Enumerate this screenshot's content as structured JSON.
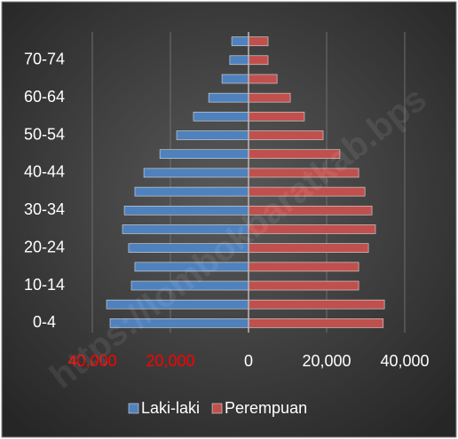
{
  "chart_data": {
    "type": "pyramid",
    "categories": [
      "0-4",
      null,
      "10-14",
      null,
      "20-24",
      null,
      "30-34",
      null,
      "40-44",
      null,
      "50-54",
      null,
      "60-64",
      null,
      "70-74",
      null
    ],
    "series": [
      {
        "name": "Laki-laki",
        "color": "#4f81bd",
        "values": [
          -35450,
          -36360,
          -30000,
          -29100,
          -30700,
          -32270,
          -31800,
          -29100,
          -26800,
          -22700,
          -18400,
          -14100,
          -10200,
          -6800,
          -4800,
          -4300
        ]
      },
      {
        "name": "Perempuan",
        "color": "#c0504d",
        "values": [
          34500,
          34800,
          28200,
          28200,
          30700,
          32500,
          31600,
          29800,
          28200,
          23400,
          19100,
          14300,
          10700,
          7300,
          5000,
          5000
        ]
      }
    ],
    "xlim": [
      -50000,
      50000
    ],
    "xticks": [
      {
        "value": -40000,
        "label": "40,000"
      },
      {
        "value": -20000,
        "label": "20,000"
      },
      0,
      {
        "value": 20000,
        "label": "20,000"
      },
      {
        "value": 40000,
        "label": "40,000"
      }
    ],
    "xtick_label_colors": [
      "#ff0000",
      "#ff0000",
      "#ffffff",
      "#ffffff",
      "#ffffff"
    ],
    "grid": true,
    "legend": "bottom",
    "watermark": "https://lombokbaratkab.bps"
  }
}
